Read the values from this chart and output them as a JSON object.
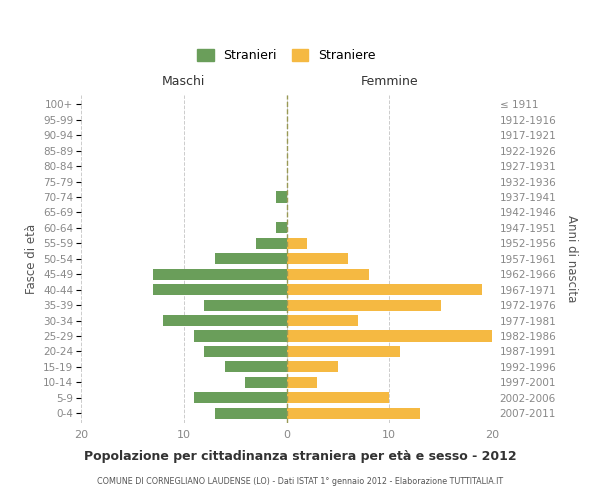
{
  "age_groups": [
    "0-4",
    "5-9",
    "10-14",
    "15-19",
    "20-24",
    "25-29",
    "30-34",
    "35-39",
    "40-44",
    "45-49",
    "50-54",
    "55-59",
    "60-64",
    "65-69",
    "70-74",
    "75-79",
    "80-84",
    "85-89",
    "90-94",
    "95-99",
    "100+"
  ],
  "birth_years": [
    "2007-2011",
    "2002-2006",
    "1997-2001",
    "1992-1996",
    "1987-1991",
    "1982-1986",
    "1977-1981",
    "1972-1976",
    "1967-1971",
    "1962-1966",
    "1957-1961",
    "1952-1956",
    "1947-1951",
    "1942-1946",
    "1937-1941",
    "1932-1936",
    "1927-1931",
    "1922-1926",
    "1917-1921",
    "1912-1916",
    "≤ 1911"
  ],
  "maschi": [
    7,
    9,
    4,
    6,
    8,
    9,
    12,
    8,
    13,
    13,
    7,
    3,
    1,
    0,
    1,
    0,
    0,
    0,
    0,
    0,
    0
  ],
  "femmine": [
    13,
    10,
    3,
    5,
    11,
    20,
    7,
    15,
    19,
    8,
    6,
    2,
    0,
    0,
    0,
    0,
    0,
    0,
    0,
    0,
    0
  ],
  "maschi_color": "#6a9e5a",
  "femmine_color": "#f5b942",
  "background_color": "#ffffff",
  "grid_color": "#cccccc",
  "dashed_line_color": "#999955",
  "text_color_dark": "#333333",
  "text_color_mid": "#555555",
  "text_color_light": "#888888",
  "title": "Popolazione per cittadinanza straniera per età e sesso - 2012",
  "subtitle": "COMUNE DI CORNEGLIANO LAUDENSE (LO) - Dati ISTAT 1° gennaio 2012 - Elaborazione TUTTITALIA.IT",
  "ylabel_left": "Fasce di età",
  "ylabel_right": "Anni di nascita",
  "label_maschi": "Maschi",
  "label_femmine": "Femmine",
  "legend_maschi": "Stranieri",
  "legend_femmine": "Straniere",
  "xlim": 20,
  "bar_height": 0.72
}
